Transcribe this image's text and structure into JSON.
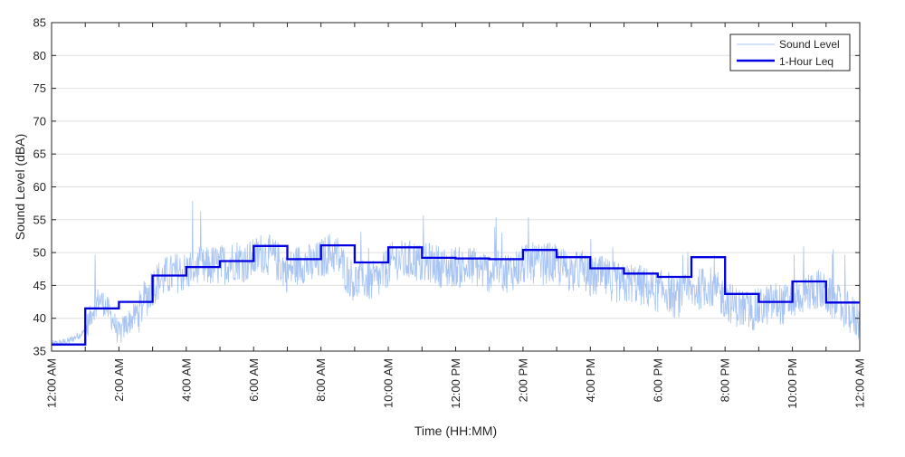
{
  "chart_data": {
    "type": "line",
    "xlabel": "Time (HH:MM)",
    "ylabel": "Sound Level (dBA)",
    "ylim": [
      35,
      85
    ],
    "xlim": [
      "12:00 AM",
      "12:00 AM"
    ],
    "yticks": [
      35,
      40,
      45,
      50,
      55,
      60,
      65,
      70,
      75,
      80,
      85
    ],
    "xtick_labels": [
      "12:00 AM",
      "2:00 AM",
      "4:00 AM",
      "6:00 AM",
      "8:00 AM",
      "10:00 AM",
      "12:00 PM",
      "2:00 PM",
      "4:00 PM",
      "6:00 PM",
      "8:00 PM",
      "10:00 PM",
      "12:00 AM"
    ],
    "grid": "horizontal",
    "legend_position": "top-right",
    "series": [
      {
        "name": "Sound Level",
        "style": "thin line",
        "color": "#a7c4f2",
        "x_hours": [
          0,
          0.5,
          1,
          1.2,
          1.4,
          1.6,
          1.8,
          2,
          2.2,
          2.4,
          2.6,
          2.8,
          3,
          3.25,
          3.5,
          3.75,
          4,
          4.25,
          4.5,
          4.75,
          5,
          5.25,
          5.5,
          5.75,
          6,
          6.25,
          6.5,
          6.75,
          7,
          7.25,
          7.5,
          7.75,
          8,
          8.25,
          8.5,
          8.75,
          9,
          9.25,
          9.5,
          9.75,
          10,
          10.25,
          10.5,
          10.75,
          11,
          11.25,
          11.5,
          11.75,
          12,
          12.25,
          12.5,
          12.75,
          13,
          13.25,
          13.5,
          13.75,
          14,
          14.25,
          14.5,
          14.75,
          15,
          15.25,
          15.5,
          15.75,
          16,
          16.25,
          16.5,
          16.75,
          17,
          17.25,
          17.5,
          17.75,
          18,
          18.25,
          18.5,
          18.75,
          19,
          19.25,
          19.5,
          19.75,
          20,
          20.25,
          20.5,
          20.75,
          21,
          21.25,
          21.5,
          21.75,
          22,
          22.25,
          22.5,
          22.75,
          23,
          23.25,
          23.5,
          23.75,
          24
        ],
        "values": [
          36,
          36.5,
          38,
          41,
          43,
          42,
          40,
          37.5,
          39,
          40,
          41,
          43,
          45,
          46,
          46.5,
          47,
          47,
          48,
          47.5,
          48,
          48,
          48.5,
          49,
          48.5,
          49,
          50,
          49.5,
          48.5,
          47,
          48,
          48.5,
          48,
          49,
          50,
          49.5,
          47,
          45.5,
          46,
          45.5,
          46,
          48,
          49,
          48.5,
          49,
          48,
          48.5,
          48,
          47.5,
          48,
          47.5,
          48,
          47.5,
          47,
          47.5,
          47,
          47.5,
          48,
          48.5,
          48,
          48.5,
          48,
          47.5,
          47,
          47.5,
          46,
          46.5,
          46,
          45.5,
          45,
          45.5,
          45,
          44.5,
          44,
          44.5,
          43,
          43.5,
          44,
          44.5,
          45,
          44,
          43,
          42,
          41.5,
          41,
          41.5,
          42,
          42.5,
          42,
          43,
          43.5,
          44,
          44.5,
          43.5,
          42.5,
          41.5,
          40.5,
          39.5
        ],
        "values_note": "approximate trace of the noisy signal"
      },
      {
        "name": "1-Hour Leq",
        "style": "thick step line",
        "color": "#0000e0",
        "x_hours": [
          0,
          1,
          2,
          3,
          4,
          5,
          6,
          7,
          8,
          9,
          10,
          11,
          12,
          13,
          14,
          15,
          16,
          17,
          18,
          19,
          20,
          21,
          22,
          23
        ],
        "values": [
          36,
          41.5,
          42.5,
          46.5,
          47.8,
          48.7,
          51,
          49,
          51.1,
          48.5,
          50.8,
          49.2,
          49.1,
          49,
          50.4,
          49.3,
          47.6,
          46.8,
          46.3,
          49.3,
          43.7,
          42.5,
          45.6,
          42.4
        ]
      }
    ]
  }
}
